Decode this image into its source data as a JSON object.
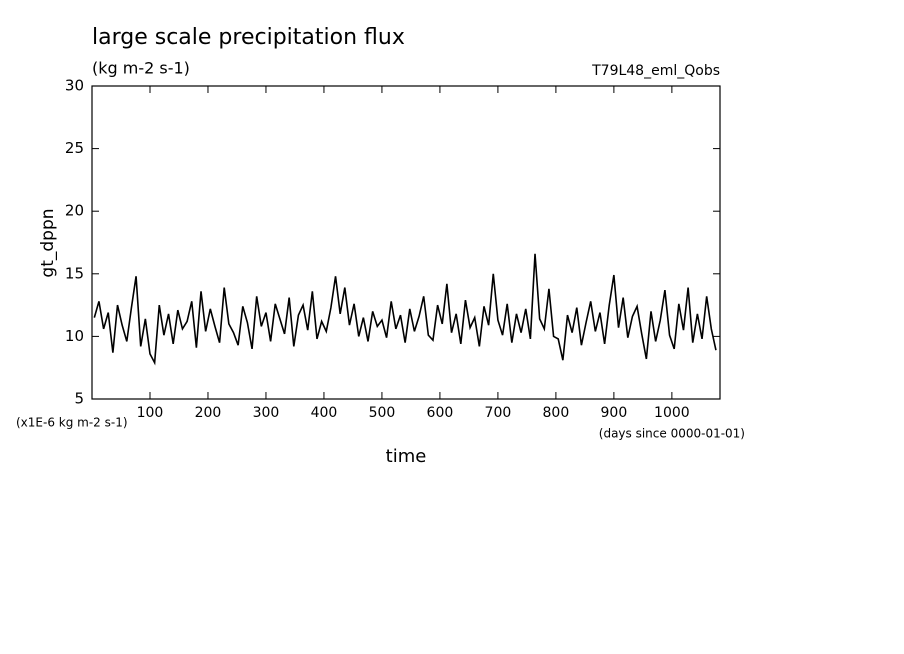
{
  "chart_data": {
    "type": "line",
    "title": "large scale precipitation flux",
    "subtitle": "(kg m-2 s-1)",
    "annotation": "T79L48_eml_Qobs",
    "y_label": "gt_dppn",
    "x_label": "time",
    "y_unit_note": "(x1E-6 kg m-2 s-1)",
    "x_unit_note": "(days since 0000-01-01)",
    "xlim": [
      0,
      1083
    ],
    "ylim": [
      5,
      30
    ],
    "xticks": [
      100,
      200,
      300,
      400,
      500,
      600,
      700,
      800,
      900,
      1000
    ],
    "yticks": [
      5,
      10,
      15,
      20,
      25,
      30
    ],
    "color": "#000000",
    "x": [
      4,
      12,
      20,
      28,
      36,
      44,
      52,
      60,
      68,
      76,
      84,
      92,
      100,
      108,
      116,
      124,
      132,
      140,
      148,
      156,
      164,
      172,
      180,
      188,
      196,
      204,
      212,
      220,
      228,
      236,
      244,
      252,
      260,
      268,
      276,
      284,
      292,
      300,
      308,
      316,
      324,
      332,
      340,
      348,
      356,
      364,
      372,
      380,
      388,
      396,
      404,
      412,
      420,
      428,
      436,
      444,
      452,
      460,
      468,
      476,
      484,
      492,
      500,
      508,
      516,
      524,
      532,
      540,
      548,
      556,
      564,
      572,
      580,
      588,
      596,
      604,
      612,
      620,
      628,
      636,
      644,
      652,
      660,
      668,
      676,
      684,
      692,
      700,
      708,
      716,
      724,
      732,
      740,
      748,
      756,
      764,
      772,
      780,
      788,
      796,
      804,
      812,
      820,
      828,
      836,
      844,
      852,
      860,
      868,
      876,
      884,
      892,
      900,
      908,
      916,
      924,
      932,
      940,
      948,
      956,
      964,
      972,
      980,
      988,
      996,
      1004,
      1012,
      1020,
      1028,
      1036,
      1044,
      1052,
      1060,
      1068,
      1076
    ],
    "values": [
      11.5,
      12.8,
      10.6,
      11.9,
      8.7,
      12.5,
      10.9,
      9.6,
      12.3,
      14.8,
      9.2,
      11.4,
      8.6,
      7.9,
      12.5,
      10.1,
      11.8,
      9.4,
      12.1,
      10.6,
      11.2,
      12.8,
      9.1,
      13.6,
      10.4,
      12.2,
      10.8,
      9.5,
      13.9,
      11.0,
      10.3,
      9.3,
      12.4,
      11.1,
      9.0,
      13.2,
      10.8,
      11.9,
      9.6,
      12.6,
      11.4,
      10.2,
      13.1,
      9.2,
      11.7,
      12.5,
      10.5,
      13.6,
      9.8,
      11.2,
      10.4,
      12.3,
      14.8,
      11.8,
      13.9,
      10.9,
      12.6,
      10.0,
      11.5,
      9.6,
      12.0,
      10.8,
      11.3,
      9.9,
      12.8,
      10.6,
      11.7,
      9.5,
      12.2,
      10.4,
      11.6,
      13.2,
      10.1,
      9.7,
      12.5,
      11.0,
      14.2,
      10.3,
      11.8,
      9.4,
      12.9,
      10.7,
      11.5,
      9.2,
      12.4,
      10.9,
      15.0,
      11.3,
      10.1,
      12.6,
      9.5,
      11.8,
      10.3,
      12.2,
      9.8,
      16.6,
      11.4,
      10.6,
      13.8,
      10.0,
      9.8,
      8.1,
      11.7,
      10.3,
      12.3,
      9.3,
      11.1,
      12.8,
      10.4,
      11.9,
      9.4,
      12.5,
      14.9,
      10.7,
      13.1,
      9.9,
      11.6,
      12.4,
      10.2,
      8.2,
      12.0,
      9.6,
      11.3,
      13.7,
      10.1,
      9.0,
      12.6,
      10.5,
      13.9,
      9.5,
      11.8,
      9.8,
      13.2,
      10.6,
      8.9
    ]
  }
}
